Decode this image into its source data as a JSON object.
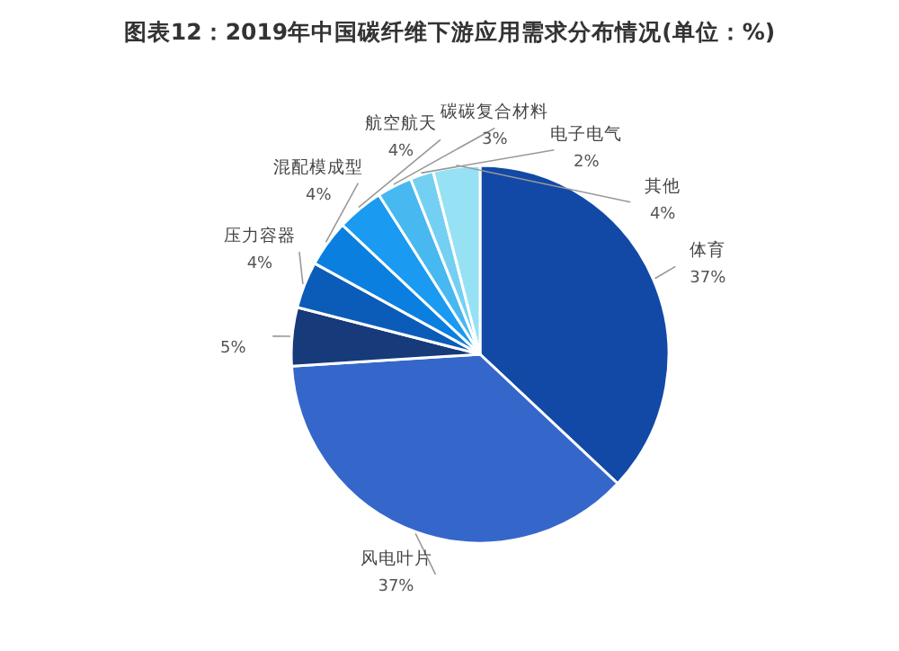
{
  "chart_data": {
    "type": "pie",
    "title": "图表12：2019年中国碳纤维下游应用需求分布情况(单位：%)",
    "categories": [
      "体育",
      "风电叶片",
      null,
      "压力容器",
      "混配模成型",
      "航空航天",
      "碳碳复合材料",
      "电子电气",
      "其他"
    ],
    "values": [
      37,
      37,
      5,
      4,
      4,
      4,
      3,
      2,
      4
    ],
    "value_labels": [
      "37%",
      "37%",
      "5%",
      "4%",
      "4%",
      "4%",
      "3%",
      "2%",
      "4%"
    ],
    "colors": [
      "#1249a6",
      "#3567cb",
      "#163a7a",
      "#0b5cb8",
      "#0a7fe0",
      "#1a9af0",
      "#48b8f0",
      "#74d0f2",
      "#96e2f4"
    ]
  }
}
